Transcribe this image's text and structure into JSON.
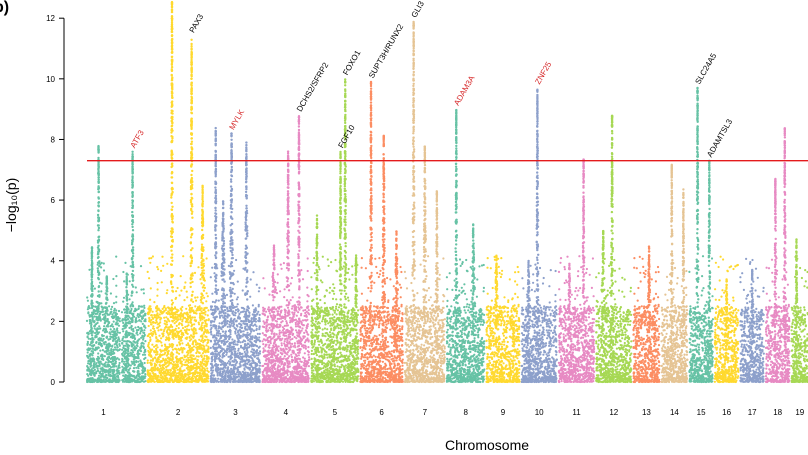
{
  "chart_data": {
    "type": "scatter",
    "subtype": "manhattan",
    "panel_label": "b)",
    "xlabel": "Chromosome",
    "ylabel": "−log₁₀(p)",
    "ylim": [
      0,
      12.6
    ],
    "yticks": [
      0,
      2,
      4,
      6,
      8,
      10,
      12
    ],
    "significance_threshold": 7.3,
    "significance_color": "#e41a1c",
    "chromosomes": [
      {
        "label": "1",
        "length": 14,
        "color": "#66c2a5",
        "max": 7.8,
        "peaks": [
          [
            0.35,
            7.8,
            0.05
          ],
          [
            0.15,
            4.5,
            0.05
          ],
          [
            0.6,
            3.5,
            0.1
          ]
        ]
      },
      {
        "label": "",
        "length": 10,
        "color": "#66c2a5",
        "max": 7.6,
        "peaks": [
          [
            0.45,
            7.6,
            0.06
          ],
          [
            0.2,
            3.6,
            0.1
          ]
        ]
      },
      {
        "label": "2",
        "length": 26,
        "color": "#ffd92f",
        "max": 12.6,
        "peaks": [
          [
            0.4,
            12.6,
            0.025
          ],
          [
            0.72,
            11.4,
            0.015
          ],
          [
            0.9,
            6.5,
            0.05
          ]
        ]
      },
      {
        "label": "3",
        "length": 21,
        "color": "#8da0cb",
        "max": 8.5,
        "peaks": [
          [
            0.1,
            8.4,
            0.03
          ],
          [
            0.42,
            8.2,
            0.05
          ],
          [
            0.72,
            7.9,
            0.05
          ],
          [
            0.25,
            6.0,
            0.08
          ]
        ]
      },
      {
        "label": "4",
        "length": 20,
        "color": "#e78ac3",
        "max": 8.8,
        "peaks": [
          [
            0.55,
            7.6,
            0.05
          ],
          [
            0.78,
            8.8,
            0.03
          ],
          [
            0.25,
            4.5,
            0.1
          ]
        ]
      },
      {
        "label": "5",
        "length": 20,
        "color": "#a6d854",
        "max": 10.0,
        "peaks": [
          [
            0.12,
            5.5,
            0.04
          ],
          [
            0.72,
            10.0,
            0.03
          ],
          [
            0.62,
            7.6,
            0.03
          ],
          [
            0.95,
            4.2,
            0.05
          ]
        ]
      },
      {
        "label": "6",
        "length": 18,
        "color": "#fc8d62",
        "max": 9.9,
        "peaks": [
          [
            0.25,
            9.9,
            0.03
          ],
          [
            0.55,
            8.2,
            0.05
          ],
          [
            0.85,
            5.0,
            0.08
          ]
        ]
      },
      {
        "label": "7",
        "length": 17,
        "color": "#e5c494",
        "max": 11.9,
        "peaks": [
          [
            0.22,
            11.9,
            0.02
          ],
          [
            0.5,
            7.8,
            0.06
          ],
          [
            0.8,
            6.3,
            0.05
          ]
        ]
      },
      {
        "label": "8",
        "length": 16,
        "color": "#66c2a5",
        "max": 9.0,
        "peaks": [
          [
            0.25,
            9.0,
            0.04
          ],
          [
            0.7,
            5.2,
            0.1
          ]
        ]
      },
      {
        "label": "9",
        "length": 14,
        "color": "#ffd92f",
        "max": 4.4,
        "peaks": [
          [
            0.3,
            4.2,
            0.1
          ]
        ]
      },
      {
        "label": "10",
        "length": 15,
        "color": "#8da0cb",
        "max": 9.7,
        "peaks": [
          [
            0.45,
            9.7,
            0.03
          ],
          [
            0.2,
            4.0,
            0.1
          ]
        ]
      },
      {
        "label": "11",
        "length": 15,
        "color": "#e78ac3",
        "max": 7.4,
        "peaks": [
          [
            0.7,
            7.4,
            0.02
          ],
          [
            0.3,
            3.9,
            0.1
          ]
        ]
      },
      {
        "label": "12",
        "length": 15,
        "color": "#a6d854",
        "max": 8.8,
        "peaks": [
          [
            0.45,
            8.8,
            0.03
          ],
          [
            0.2,
            5.0,
            0.1
          ]
        ]
      },
      {
        "label": "13",
        "length": 11,
        "color": "#fc8d62",
        "max": 4.5,
        "peaks": [
          [
            0.6,
            4.5,
            0.1
          ]
        ]
      },
      {
        "label": "14",
        "length": 11,
        "color": "#e5c494",
        "max": 7.2,
        "peaks": [
          [
            0.4,
            7.2,
            0.05
          ],
          [
            0.85,
            6.4,
            0.04
          ]
        ]
      },
      {
        "label": "15",
        "length": 10,
        "color": "#66c2a5",
        "max": 9.7,
        "peaks": [
          [
            0.35,
            9.7,
            0.04
          ],
          [
            0.85,
            7.3,
            0.05
          ]
        ]
      },
      {
        "label": "16",
        "length": 10,
        "color": "#ffd92f",
        "max": 3.4,
        "peaks": [
          [
            0.5,
            3.4,
            0.1
          ]
        ]
      },
      {
        "label": "17",
        "length": 10,
        "color": "#8da0cb",
        "max": 3.7,
        "peaks": [
          [
            0.5,
            3.7,
            0.1
          ]
        ]
      },
      {
        "label": "18",
        "length": 10,
        "color": "#e78ac3",
        "max": 8.4,
        "peaks": [
          [
            0.8,
            8.4,
            0.03
          ],
          [
            0.4,
            6.7,
            0.05
          ]
        ]
      },
      {
        "label": "19",
        "length": 7,
        "color": "#a6d854",
        "max": 4.7,
        "peaks": [
          [
            0.3,
            4.7,
            0.1
          ]
        ]
      }
    ],
    "gene_annotations": [
      {
        "gene": "ATF3",
        "seg": 1,
        "pos": 0.45,
        "y": 7.6,
        "color": "#d62728"
      },
      {
        "gene": "PAX3",
        "seg": 2,
        "pos": 0.72,
        "y": 11.4,
        "color": "#000000"
      },
      {
        "gene": "MYLK",
        "seg": 3,
        "pos": 0.42,
        "y": 8.2,
        "color": "#d62728"
      },
      {
        "gene": "DCHS2/SFRP2",
        "seg": 4,
        "pos": 0.78,
        "y": 8.8,
        "color": "#000000"
      },
      {
        "gene": "FOXO1",
        "seg": 5,
        "pos": 0.72,
        "y": 10.0,
        "color": "#000000"
      },
      {
        "gene": "FGF10",
        "seg": 5,
        "pos": 0.62,
        "y": 7.6,
        "color": "#000000"
      },
      {
        "gene": "SUPT3H/RUNX2",
        "seg": 6,
        "pos": 0.25,
        "y": 9.9,
        "color": "#000000"
      },
      {
        "gene": "GLI3",
        "seg": 7,
        "pos": 0.22,
        "y": 11.9,
        "color": "#000000"
      },
      {
        "gene": "ADAM3A",
        "seg": 8,
        "pos": 0.25,
        "y": 9.0,
        "color": "#d62728"
      },
      {
        "gene": "ZNF25",
        "seg": 10,
        "pos": 0.45,
        "y": 9.7,
        "color": "#d62728"
      },
      {
        "gene": "SLC24A5",
        "seg": 15,
        "pos": 0.35,
        "y": 9.7,
        "color": "#000000"
      },
      {
        "gene": "ADAMTSL3",
        "seg": 15,
        "pos": 0.85,
        "y": 7.3,
        "color": "#000000"
      }
    ]
  }
}
